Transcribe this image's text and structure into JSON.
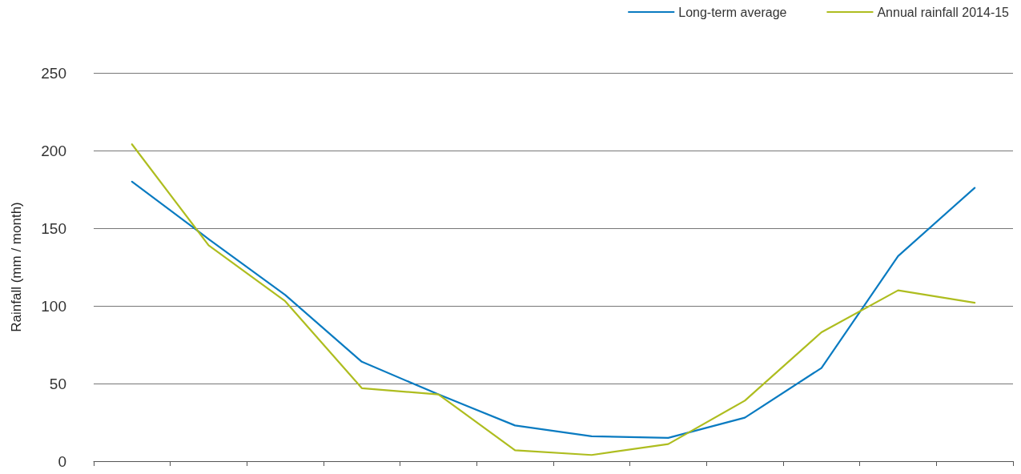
{
  "chart_data": {
    "type": "line",
    "ylabel": "Rainfall (mm / month)",
    "categories": [
      null,
      null,
      null,
      null,
      null,
      null,
      null,
      null,
      null,
      null,
      null,
      null
    ],
    "series": [
      {
        "name": "Long-term average",
        "color": "#0a7bc1",
        "values": [
          180,
          143,
          107,
          64,
          43,
          23,
          16,
          15,
          28,
          60,
          132,
          176
        ]
      },
      {
        "name": "Annual rainfall 2014-15",
        "color": "#aebd1f",
        "values": [
          204,
          139,
          103,
          47,
          43,
          7,
          4,
          11,
          39,
          83,
          110,
          102
        ]
      }
    ],
    "ylim": [
      0,
      250
    ],
    "yticks": [
      0,
      50,
      100,
      150,
      200,
      250
    ],
    "grid": "y",
    "legend": "top right",
    "marker": "none",
    "line_style": "solid"
  }
}
